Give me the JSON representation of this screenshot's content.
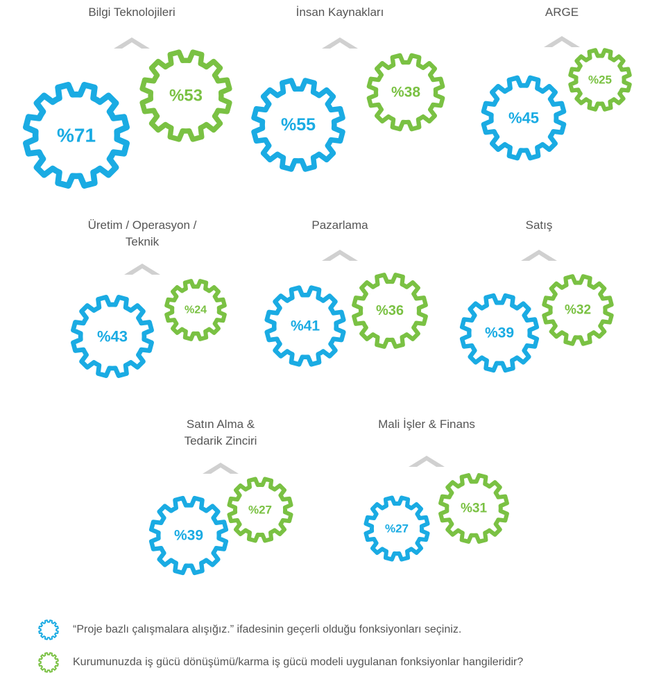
{
  "chart_data": {
    "type": "gear",
    "categories": [
      "Bilgi Teknolojileri",
      "İnsan Kaynakları",
      "ARGE",
      "Üretim / Operasyon / Teknik",
      "Pazarlama",
      "Satış",
      "Satın Alma & Tedarik Zinciri",
      "Mali İşler & Finans"
    ],
    "series": [
      {
        "name": "“Proje bazlı çalışmalara alışığız.”  ifadesinin geçerli olduğu fonksiyonları seçiniz.",
        "color": "#1aabe3",
        "values": [
          71,
          55,
          45,
          43,
          41,
          39,
          39,
          27
        ],
        "value_labels": [
          "%71",
          "%55",
          "%45",
          "%43",
          "%41",
          "%39",
          "%39",
          "%27"
        ]
      },
      {
        "name": "Kurumunuzda iş gücü dönüşümü/karma iş gücü modeli uygulanan fonksiyonlar hangileridir?",
        "color": "#7ac143",
        "values": [
          53,
          38,
          25,
          24,
          36,
          32,
          27,
          31
        ],
        "value_labels": [
          "%53",
          "%38",
          "%25",
          "%24",
          "%36",
          "%32",
          "%27",
          "%31"
        ]
      }
    ]
  }
}
